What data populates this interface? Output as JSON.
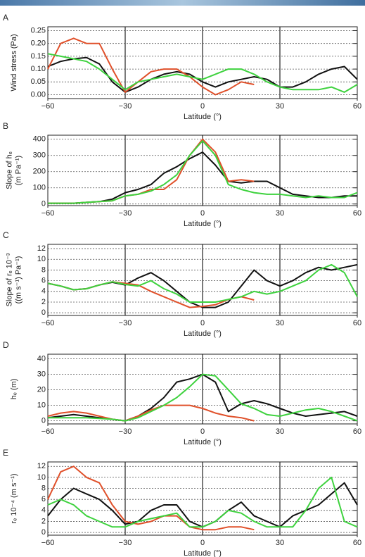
{
  "chart_data": [
    {
      "type": "line",
      "label": "A",
      "xlabel": "Latitude (°)",
      "ylabel": [
        "Wind stress (Pa)"
      ],
      "grid": true,
      "x": [
        -60,
        -55,
        -50,
        -45,
        -40,
        -35,
        -30,
        -25,
        -20,
        -15,
        -10,
        -5,
        0,
        5,
        10,
        15,
        20,
        25,
        30,
        35,
        40,
        45,
        50,
        55,
        60
      ],
      "xlim": [
        -60,
        60
      ],
      "xticks": [
        {
          "value": -60,
          "label": "−60"
        },
        {
          "value": -30,
          "label": "−30"
        },
        0,
        30,
        60
      ],
      "ylim": [
        -0.015,
        0.265
      ],
      "yticks": [
        {
          "value": 0,
          "label": "0.00"
        },
        0.05,
        {
          "value": 0.1,
          "label": "0.10"
        },
        0.15,
        {
          "value": 0.2,
          "label": "0.20"
        },
        0.25
      ],
      "series": [
        {
          "color": "#111111",
          "values": [
            0.11,
            0.13,
            0.14,
            0.145,
            0.12,
            0.05,
            0.01,
            0.03,
            0.06,
            0.08,
            0.09,
            0.08,
            0.05,
            0.03,
            0.05,
            0.06,
            0.07,
            0.06,
            0.03,
            0.03,
            0.05,
            0.08,
            0.1,
            0.11,
            0.06
          ]
        },
        {
          "color": "#e0502a",
          "values": [
            0.1,
            0.2,
            0.22,
            0.2,
            0.2,
            0.1,
            0.01,
            0.05,
            0.09,
            0.1,
            0.1,
            0.07,
            0.03,
            0.0,
            0.02,
            0.05,
            0.04,
            null,
            null,
            null,
            null,
            null,
            null,
            null,
            null
          ]
        },
        {
          "color": "#3ed23e",
          "values": [
            0.16,
            0.15,
            0.14,
            0.13,
            0.1,
            0.06,
            0.02,
            0.05,
            0.06,
            0.07,
            0.08,
            0.07,
            0.06,
            0.08,
            0.1,
            0.1,
            0.08,
            0.05,
            0.03,
            0.02,
            0.02,
            0.02,
            0.03,
            0.01,
            0.04
          ]
        }
      ]
    },
    {
      "type": "line",
      "label": "B",
      "xlabel": "Latitude (°)",
      "ylabel": [
        "Slope of hₑ",
        "(m  Pa⁻¹)"
      ],
      "grid": true,
      "x": [
        -60,
        -55,
        -50,
        -45,
        -40,
        -35,
        -30,
        -25,
        -20,
        -15,
        -10,
        -5,
        0,
        5,
        10,
        15,
        20,
        25,
        30,
        35,
        40,
        45,
        50,
        55,
        60
      ],
      "xlim": [
        -60,
        60
      ],
      "xticks": [
        {
          "value": -60,
          "label": "−60"
        },
        {
          "value": -30,
          "label": "−30"
        },
        0,
        30,
        60
      ],
      "ylim": [
        -10,
        425
      ],
      "yticks": [
        0,
        100,
        200,
        300,
        400
      ],
      "series": [
        {
          "color": "#111111",
          "values": [
            5,
            5,
            5,
            10,
            15,
            30,
            70,
            90,
            120,
            190,
            230,
            280,
            320,
            240,
            140,
            130,
            140,
            140,
            100,
            60,
            50,
            40,
            40,
            50,
            50
          ]
        },
        {
          "color": "#e0502a",
          "values": [
            5,
            5,
            5,
            10,
            15,
            20,
            50,
            60,
            90,
            90,
            150,
            300,
            400,
            320,
            140,
            150,
            140,
            null,
            null,
            null,
            null,
            null,
            null,
            null,
            null
          ]
        },
        {
          "color": "#3ed23e",
          "values": [
            5,
            5,
            5,
            10,
            15,
            20,
            50,
            60,
            80,
            120,
            180,
            300,
            390,
            300,
            120,
            90,
            70,
            60,
            60,
            50,
            40,
            50,
            40,
            40,
            70
          ]
        }
      ]
    },
    {
      "type": "line",
      "label": "C",
      "xlabel": "Latitude (°)",
      "ylabel": [
        "Slope of rₑ 10⁻³",
        "((m s⁻¹) Pa⁻¹)"
      ],
      "grid": true,
      "x": [
        -60,
        -55,
        -50,
        -45,
        -40,
        -35,
        -30,
        -25,
        -20,
        -15,
        -10,
        -5,
        0,
        5,
        10,
        15,
        20,
        25,
        30,
        35,
        40,
        45,
        50,
        55,
        60
      ],
      "xlim": [
        -60,
        60
      ],
      "xticks": [
        {
          "value": -60,
          "label": "−60"
        },
        {
          "value": -30,
          "label": "−30"
        },
        0,
        30,
        60
      ],
      "ylim": [
        -0.5,
        12.8
      ],
      "yticks": [
        0,
        2,
        4,
        6,
        8,
        10,
        12
      ],
      "series": [
        {
          "color": "#111111",
          "values": [
            5.5,
            5,
            4.3,
            4.5,
            5.2,
            5.7,
            5.2,
            6.5,
            7.5,
            6,
            4,
            2,
            1,
            1,
            2,
            5,
            8,
            6,
            5,
            6,
            7.5,
            8.5,
            8,
            8.5,
            9
          ]
        },
        {
          "color": "#e0502a",
          "values": [
            5.5,
            5,
            4.3,
            4.5,
            5.2,
            5.8,
            5.5,
            5.2,
            4,
            3,
            2,
            1,
            1.2,
            1.5,
            2.5,
            3,
            2.4,
            null,
            null,
            null,
            null,
            null,
            null,
            null,
            null
          ]
        },
        {
          "color": "#3ed23e",
          "values": [
            5.5,
            5,
            4.3,
            4.5,
            5.2,
            5.8,
            5.3,
            5,
            6,
            4.5,
            3.5,
            2,
            2,
            2,
            2.5,
            3,
            4,
            3.5,
            4,
            5,
            6,
            8,
            9,
            7.5,
            3
          ]
        }
      ]
    },
    {
      "type": "line",
      "label": "D",
      "xlabel": "Latitude (°)",
      "ylabel": [
        "hₑ (m)"
      ],
      "grid": true,
      "x": [
        -60,
        -55,
        -50,
        -45,
        -40,
        -35,
        -30,
        -25,
        -20,
        -15,
        -10,
        -5,
        0,
        5,
        10,
        15,
        20,
        25,
        30,
        35,
        40,
        45,
        50,
        55,
        60
      ],
      "xlim": [
        -60,
        60
      ],
      "xticks": [
        {
          "value": -60,
          "label": "−60"
        },
        {
          "value": -30,
          "label": "−30"
        },
        0,
        30,
        60
      ],
      "ylim": [
        -2,
        43
      ],
      "yticks": [
        0,
        10,
        20,
        30,
        40
      ],
      "series": [
        {
          "color": "#111111",
          "values": [
            2,
            3,
            4,
            3,
            2,
            1,
            0,
            3,
            8,
            15,
            25,
            27,
            30,
            25,
            6,
            11,
            13,
            11,
            8,
            5,
            3,
            4,
            5,
            6,
            3
          ]
        },
        {
          "color": "#e0502a",
          "values": [
            3,
            5,
            6,
            5,
            3,
            1,
            0,
            3,
            7,
            10,
            10,
            10,
            8,
            5,
            3,
            2,
            0,
            null,
            null,
            null,
            null,
            null,
            null,
            null,
            null
          ]
        },
        {
          "color": "#3ed23e",
          "values": [
            2,
            2,
            2,
            2,
            1.5,
            1,
            0,
            2,
            6,
            10,
            15,
            22,
            30,
            29,
            20,
            11,
            8,
            4,
            3,
            5,
            7,
            8,
            6,
            3,
            0
          ]
        }
      ]
    },
    {
      "type": "line",
      "label": "E",
      "xlabel": "Latitude (°)",
      "ylabel": [
        "rₑ 10⁻⁴ (m s⁻¹)"
      ],
      "grid": true,
      "x": [
        -60,
        -55,
        -50,
        -45,
        -40,
        -35,
        -30,
        -25,
        -20,
        -15,
        -10,
        -5,
        0,
        5,
        10,
        15,
        20,
        25,
        30,
        35,
        40,
        45,
        50,
        55,
        60
      ],
      "xlim": [
        -60,
        60
      ],
      "xticks": [
        {
          "value": -60,
          "label": "−60"
        },
        {
          "value": -30,
          "label": "−30"
        },
        0,
        30,
        60
      ],
      "ylim": [
        -0.5,
        12.8
      ],
      "yticks": [
        0,
        2,
        4,
        6,
        8,
        10,
        12
      ],
      "series": [
        {
          "color": "#111111",
          "values": [
            3,
            6,
            8,
            7,
            6,
            4,
            1.5,
            2,
            4,
            5,
            5,
            2,
            1,
            2,
            4,
            5.5,
            3,
            2,
            1,
            3,
            4,
            5,
            7,
            9,
            5
          ]
        },
        {
          "color": "#e0502a",
          "values": [
            6,
            11,
            12,
            10,
            9,
            5,
            2,
            1.5,
            2,
            3,
            3,
            1,
            0.5,
            0.5,
            1,
            1,
            0.5,
            null,
            null,
            null,
            null,
            null,
            null,
            null,
            null
          ]
        },
        {
          "color": "#3ed23e",
          "values": [
            5,
            6,
            5,
            3,
            2,
            1,
            1,
            2,
            2.5,
            3,
            3.5,
            1,
            1,
            2,
            4,
            3.5,
            2,
            1,
            1,
            1,
            4,
            8,
            10,
            2,
            1
          ]
        }
      ]
    }
  ]
}
